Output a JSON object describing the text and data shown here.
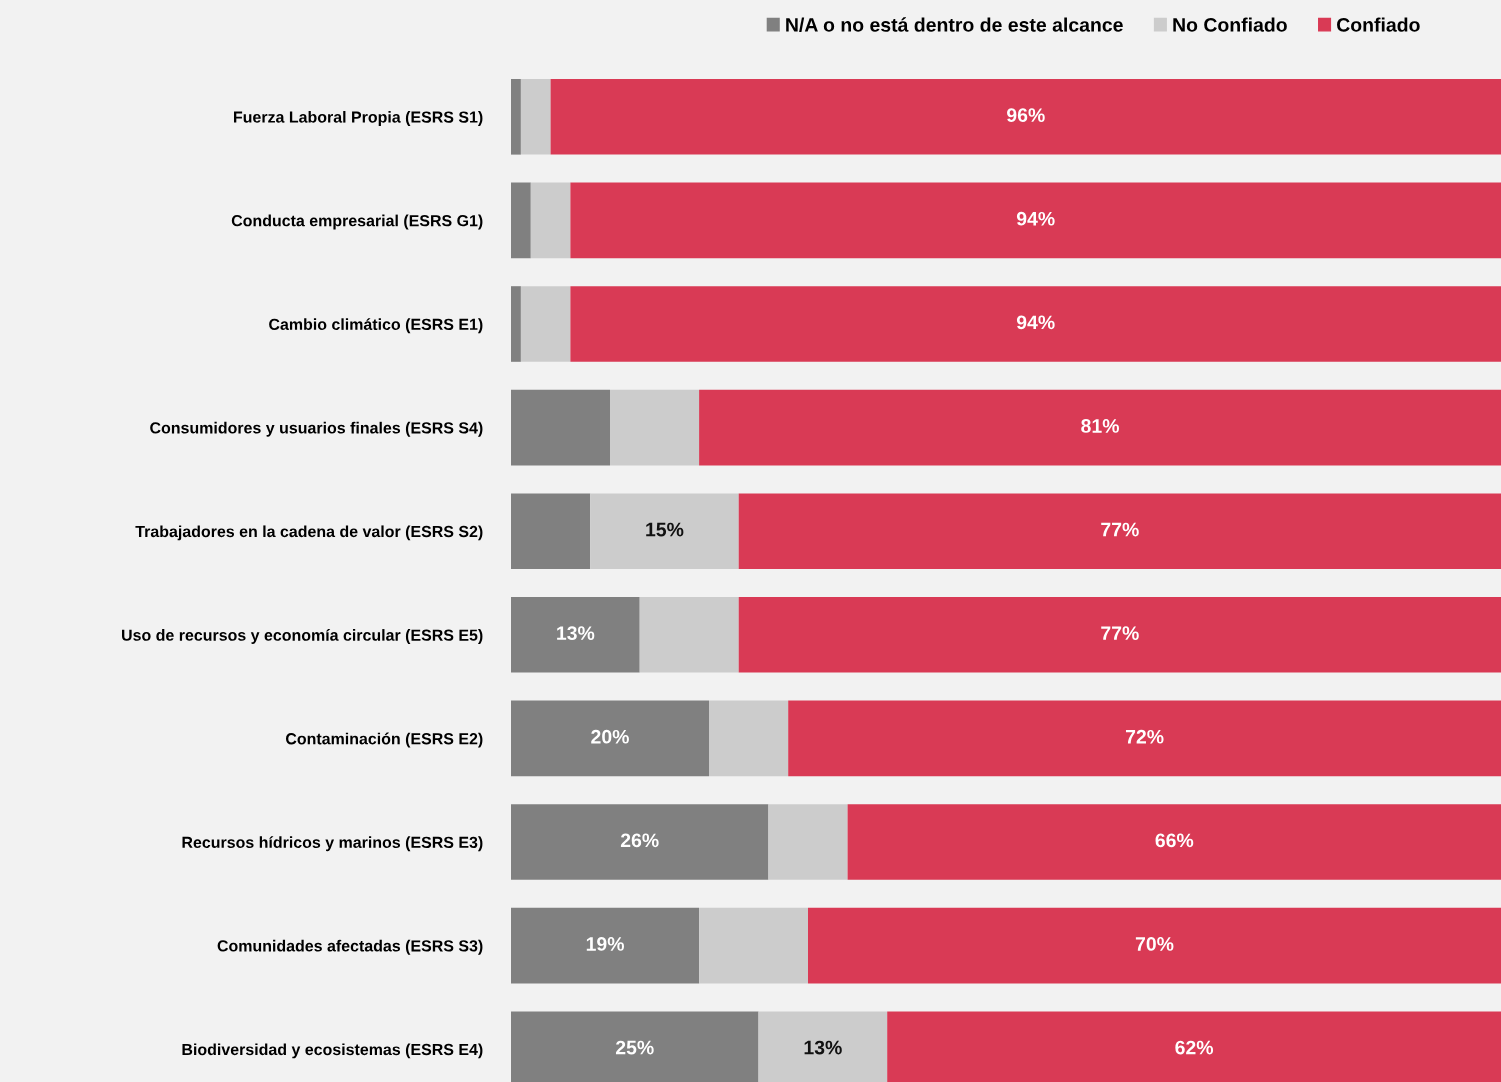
{
  "chart_data": {
    "type": "bar",
    "orientation": "horizontal",
    "stacked": true,
    "categories": [
      "Fuerza Laboral Propia (ESRS S1)",
      "Conducta empresarial (ESRS G1)",
      "Cambio climático (ESRS E1)",
      "Consumidores y usuarios finales (ESRS S4)",
      "Trabajadores en la cadena de valor (ESRS S2)",
      "Uso de recursos y economía circular (ESRS E5)",
      "Contaminación (ESRS E2)",
      "Recursos hídricos y marinos (ESRS E3)",
      "Comunidades afectadas (ESRS S3)",
      "Biodiversidad y ecosistemas (ESRS E4)"
    ],
    "series": [
      {
        "name": "N/A o no está dentro de este alcance",
        "color": "#808080",
        "values": [
          1,
          2,
          1,
          10,
          8,
          13,
          20,
          26,
          19,
          25
        ],
        "value_labels": [
          null,
          null,
          null,
          null,
          null,
          "13%",
          "20%",
          "26%",
          "19%",
          "25%"
        ]
      },
      {
        "name": "No Confiado",
        "color": "#cccccc",
        "values": [
          3,
          4,
          5,
          9,
          15,
          10,
          8,
          8,
          11,
          13
        ],
        "value_labels": [
          null,
          null,
          null,
          null,
          "15%",
          null,
          null,
          null,
          null,
          "13%"
        ]
      },
      {
        "name": "Confiado",
        "color": "#d93a55",
        "values": [
          96,
          94,
          94,
          81,
          77,
          77,
          72,
          66,
          70,
          62
        ],
        "value_labels": [
          "96%",
          "94%",
          "94%",
          "81%",
          "77%",
          "77%",
          "72%",
          "66%",
          "70%",
          "62%"
        ]
      }
    ],
    "xlim": [
      0,
      100
    ],
    "tick_labels": "y",
    "legend": "top right",
    "grid": false
  }
}
